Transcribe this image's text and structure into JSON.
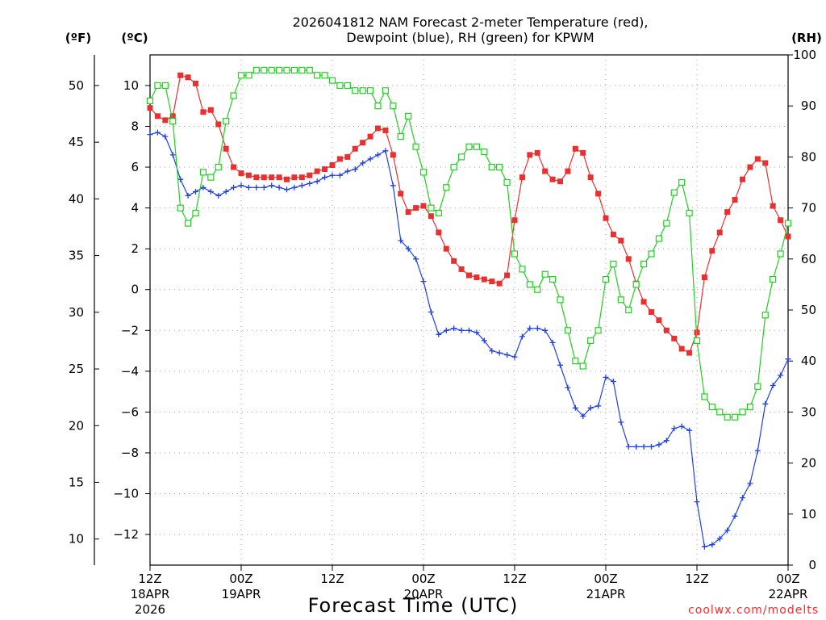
{
  "chart_data": {
    "type": "line",
    "title_line1": "2026041812 NAM Forecast 2-meter Temperature (red),",
    "title_line2": "Dewpoint (blue), RH (green) for KPWM",
    "xlabel": "Forecast Time (UTC)",
    "credit": "coolwx.com/modelts",
    "unit_labels": {
      "fahrenheit": "(ºF)",
      "celsius": "(ºC)",
      "rh": "(RH)"
    },
    "x_range_hours": [
      0,
      84
    ],
    "y_left_celsius_range": [
      -13.5,
      11.5
    ],
    "y_right_rh_range": [
      0,
      100
    ],
    "x_ticks": [
      {
        "h": 0,
        "line1": "12Z",
        "line2": "18APR",
        "line3": "2026"
      },
      {
        "h": 12,
        "line1": "00Z",
        "line2": "19APR",
        "line3": ""
      },
      {
        "h": 24,
        "line1": "12Z",
        "line2": "",
        "line3": ""
      },
      {
        "h": 36,
        "line1": "00Z",
        "line2": "20APR",
        "line3": ""
      },
      {
        "h": 48,
        "line1": "12Z",
        "line2": "",
        "line3": ""
      },
      {
        "h": 60,
        "line1": "00Z",
        "line2": "21APR",
        "line3": ""
      },
      {
        "h": 72,
        "line1": "12Z",
        "line2": "",
        "line3": ""
      },
      {
        "h": 84,
        "line1": "00Z",
        "line2": "22APR",
        "line3": ""
      }
    ],
    "celsius_ticks": [
      "10",
      "8",
      "6",
      "4",
      "2",
      "0",
      "−2",
      "−4",
      "−6",
      "−8",
      "−10",
      "−12"
    ],
    "celsius_tick_values": [
      10,
      8,
      6,
      4,
      2,
      0,
      -2,
      -4,
      -6,
      -8,
      -10,
      -12
    ],
    "fahrenheit_ticks": [
      "50",
      "45",
      "40",
      "35",
      "30",
      "25",
      "20",
      "15",
      "10"
    ],
    "fahrenheit_tick_values": [
      50,
      45,
      40,
      35,
      30,
      25,
      20,
      15,
      10
    ],
    "rh_ticks": [
      "100",
      "90",
      "80",
      "70",
      "60",
      "50",
      "40",
      "30",
      "20",
      "10",
      "0"
    ],
    "rh_tick_values": [
      100,
      90,
      80,
      70,
      60,
      50,
      40,
      30,
      20,
      10,
      0
    ],
    "series": [
      {
        "name": "Temperature",
        "color": "#e83030",
        "axis": "celsius",
        "marker": "filled-square",
        "points": [
          [
            0,
            8.9
          ],
          [
            1,
            8.5
          ],
          [
            2,
            8.3
          ],
          [
            3,
            8.5
          ],
          [
            4,
            10.5
          ],
          [
            5,
            10.4
          ],
          [
            6,
            10.1
          ],
          [
            7,
            8.7
          ],
          [
            8,
            8.8
          ],
          [
            9,
            8.1
          ],
          [
            10,
            6.9
          ],
          [
            11,
            6.0
          ],
          [
            12,
            5.7
          ],
          [
            13,
            5.6
          ],
          [
            14,
            5.5
          ],
          [
            15,
            5.5
          ],
          [
            16,
            5.5
          ],
          [
            17,
            5.5
          ],
          [
            18,
            5.4
          ],
          [
            19,
            5.5
          ],
          [
            20,
            5.5
          ],
          [
            21,
            5.6
          ],
          [
            22,
            5.8
          ],
          [
            23,
            5.9
          ],
          [
            24,
            6.1
          ],
          [
            25,
            6.4
          ],
          [
            26,
            6.5
          ],
          [
            27,
            6.9
          ],
          [
            28,
            7.2
          ],
          [
            29,
            7.5
          ],
          [
            30,
            7.9
          ],
          [
            31,
            7.8
          ],
          [
            32,
            6.6
          ],
          [
            33,
            4.7
          ],
          [
            34,
            3.8
          ],
          [
            35,
            4.0
          ],
          [
            36,
            4.1
          ],
          [
            37,
            3.6
          ],
          [
            38,
            2.8
          ],
          [
            39,
            2.0
          ],
          [
            40,
            1.4
          ],
          [
            41,
            1.0
          ],
          [
            42,
            0.7
          ],
          [
            43,
            0.6
          ],
          [
            44,
            0.5
          ],
          [
            45,
            0.4
          ],
          [
            46,
            0.3
          ],
          [
            47,
            0.7
          ],
          [
            48,
            3.4
          ],
          [
            49,
            5.5
          ],
          [
            50,
            6.6
          ],
          [
            51,
            6.7
          ],
          [
            52,
            5.8
          ],
          [
            53,
            5.4
          ],
          [
            54,
            5.3
          ],
          [
            55,
            5.8
          ],
          [
            56,
            6.9
          ],
          [
            57,
            6.7
          ],
          [
            58,
            5.5
          ],
          [
            59,
            4.7
          ],
          [
            60,
            3.5
          ],
          [
            61,
            2.7
          ],
          [
            62,
            2.4
          ],
          [
            63,
            1.5
          ],
          [
            64,
            0.3
          ],
          [
            65,
            -0.6
          ],
          [
            66,
            -1.1
          ],
          [
            67,
            -1.5
          ],
          [
            68,
            -2.0
          ],
          [
            69,
            -2.4
          ],
          [
            70,
            -2.9
          ],
          [
            71,
            -3.1
          ],
          [
            72,
            -2.1
          ],
          [
            73,
            0.6
          ],
          [
            74,
            1.9
          ],
          [
            75,
            2.8
          ],
          [
            76,
            3.8
          ],
          [
            77,
            4.4
          ],
          [
            78,
            5.4
          ],
          [
            79,
            6.0
          ],
          [
            80,
            6.4
          ],
          [
            81,
            6.2
          ],
          [
            82,
            4.1
          ],
          [
            83,
            3.4
          ],
          [
            84,
            2.6
          ]
        ]
      },
      {
        "name": "Dewpoint",
        "color": "#2040e0",
        "axis": "celsius",
        "marker": "plus",
        "points": [
          [
            0,
            7.6
          ],
          [
            1,
            7.7
          ],
          [
            2,
            7.5
          ],
          [
            3,
            6.6
          ],
          [
            4,
            5.4
          ],
          [
            5,
            4.6
          ],
          [
            6,
            4.8
          ],
          [
            7,
            5.0
          ],
          [
            8,
            4.8
          ],
          [
            9,
            4.6
          ],
          [
            10,
            4.8
          ],
          [
            11,
            5.0
          ],
          [
            12,
            5.1
          ],
          [
            13,
            5.0
          ],
          [
            14,
            5.0
          ],
          [
            15,
            5.0
          ],
          [
            16,
            5.1
          ],
          [
            17,
            5.0
          ],
          [
            18,
            4.9
          ],
          [
            19,
            5.0
          ],
          [
            20,
            5.1
          ],
          [
            21,
            5.2
          ],
          [
            22,
            5.3
          ],
          [
            23,
            5.5
          ],
          [
            24,
            5.6
          ],
          [
            25,
            5.6
          ],
          [
            26,
            5.8
          ],
          [
            27,
            5.9
          ],
          [
            28,
            6.2
          ],
          [
            29,
            6.4
          ],
          [
            30,
            6.6
          ],
          [
            31,
            6.8
          ],
          [
            32,
            5.1
          ],
          [
            33,
            2.4
          ],
          [
            34,
            2.0
          ],
          [
            35,
            1.5
          ],
          [
            36,
            0.4
          ],
          [
            37,
            -1.1
          ],
          [
            38,
            -2.2
          ],
          [
            39,
            -2.0
          ],
          [
            40,
            -1.9
          ],
          [
            41,
            -2.0
          ],
          [
            42,
            -2.0
          ],
          [
            43,
            -2.1
          ],
          [
            44,
            -2.5
          ],
          [
            45,
            -3.0
          ],
          [
            46,
            -3.1
          ],
          [
            47,
            -3.2
          ],
          [
            48,
            -3.3
          ],
          [
            49,
            -2.3
          ],
          [
            50,
            -1.9
          ],
          [
            51,
            -1.9
          ],
          [
            52,
            -2.0
          ],
          [
            53,
            -2.6
          ],
          [
            54,
            -3.7
          ],
          [
            55,
            -4.8
          ],
          [
            56,
            -5.8
          ],
          [
            57,
            -6.2
          ],
          [
            58,
            -5.8
          ],
          [
            59,
            -5.7
          ],
          [
            60,
            -4.3
          ],
          [
            61,
            -4.5
          ],
          [
            62,
            -6.5
          ],
          [
            63,
            -7.7
          ],
          [
            64,
            -7.7
          ],
          [
            65,
            -7.7
          ],
          [
            66,
            -7.7
          ],
          [
            67,
            -7.6
          ],
          [
            68,
            -7.4
          ],
          [
            69,
            -6.8
          ],
          [
            70,
            -6.7
          ],
          [
            71,
            -6.9
          ],
          [
            72,
            -10.4
          ],
          [
            73,
            -12.6
          ],
          [
            74,
            -12.5
          ],
          [
            75,
            -12.2
          ],
          [
            76,
            -11.8
          ],
          [
            77,
            -11.1
          ],
          [
            78,
            -10.2
          ],
          [
            79,
            -9.5
          ],
          [
            80,
            -7.9
          ],
          [
            81,
            -5.6
          ],
          [
            82,
            -4.7
          ],
          [
            83,
            -4.2
          ],
          [
            84,
            -3.4
          ]
        ]
      },
      {
        "name": "RH",
        "color": "#20d020",
        "axis": "rh",
        "marker": "open-square",
        "points": [
          [
            0,
            91
          ],
          [
            1,
            94
          ],
          [
            2,
            94
          ],
          [
            3,
            87
          ],
          [
            4,
            70
          ],
          [
            5,
            67
          ],
          [
            6,
            69
          ],
          [
            7,
            77
          ],
          [
            8,
            76
          ],
          [
            9,
            78
          ],
          [
            10,
            87
          ],
          [
            11,
            92
          ],
          [
            12,
            96
          ],
          [
            13,
            96
          ],
          [
            14,
            97
          ],
          [
            15,
            97
          ],
          [
            16,
            97
          ],
          [
            17,
            97
          ],
          [
            18,
            97
          ],
          [
            19,
            97
          ],
          [
            20,
            97
          ],
          [
            21,
            97
          ],
          [
            22,
            96
          ],
          [
            23,
            96
          ],
          [
            24,
            95
          ],
          [
            25,
            94
          ],
          [
            26,
            94
          ],
          [
            27,
            93
          ],
          [
            28,
            93
          ],
          [
            29,
            93
          ],
          [
            30,
            90
          ],
          [
            31,
            93
          ],
          [
            32,
            90
          ],
          [
            33,
            84
          ],
          [
            34,
            88
          ],
          [
            35,
            82
          ],
          [
            36,
            77
          ],
          [
            37,
            70
          ],
          [
            38,
            69
          ],
          [
            39,
            74
          ],
          [
            40,
            78
          ],
          [
            41,
            80
          ],
          [
            42,
            82
          ],
          [
            43,
            82
          ],
          [
            44,
            81
          ],
          [
            45,
            78
          ],
          [
            46,
            78
          ],
          [
            47,
            75
          ],
          [
            48,
            61
          ],
          [
            49,
            58
          ],
          [
            50,
            55
          ],
          [
            51,
            54
          ],
          [
            52,
            57
          ],
          [
            53,
            56
          ],
          [
            54,
            52
          ],
          [
            55,
            46
          ],
          [
            56,
            40
          ],
          [
            57,
            39
          ],
          [
            58,
            44
          ],
          [
            59,
            46
          ],
          [
            60,
            56
          ],
          [
            61,
            59
          ],
          [
            62,
            52
          ],
          [
            63,
            50
          ],
          [
            64,
            55
          ],
          [
            65,
            59
          ],
          [
            66,
            61
          ],
          [
            67,
            64
          ],
          [
            68,
            67
          ],
          [
            69,
            73
          ],
          [
            70,
            75
          ],
          [
            71,
            69
          ],
          [
            72,
            44
          ],
          [
            73,
            33
          ],
          [
            74,
            31
          ],
          [
            75,
            30
          ],
          [
            76,
            29
          ],
          [
            77,
            29
          ],
          [
            78,
            30
          ],
          [
            79,
            31
          ],
          [
            80,
            35
          ],
          [
            81,
            49
          ],
          [
            82,
            56
          ],
          [
            83,
            61
          ],
          [
            84,
            67
          ]
        ]
      }
    ]
  }
}
